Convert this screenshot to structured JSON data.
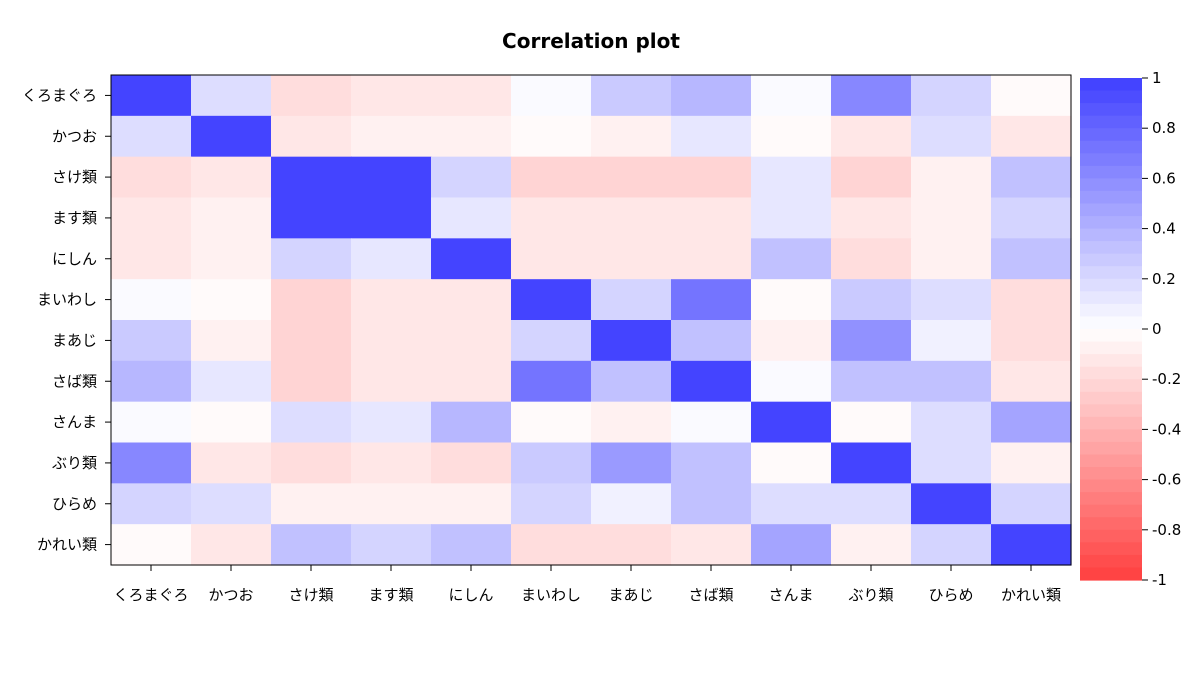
{
  "chart_data": {
    "type": "heatmap",
    "title": "Correlation plot",
    "xlabel": "",
    "ylabel": "",
    "variables": [
      "くろまぐろ",
      "かつお",
      "さけ類",
      "ます類",
      "にしん",
      "まいわし",
      "まあじ",
      "さば類",
      "さんま",
      "ぶり類",
      "ひらめ",
      "かれい類"
    ],
    "matrix": [
      [
        1.0,
        0.15,
        -0.18,
        -0.12,
        -0.12,
        0.0,
        0.25,
        0.35,
        0.0,
        0.6,
        0.2,
        -0.04
      ],
      [
        0.15,
        1.0,
        -0.15,
        -0.08,
        -0.08,
        -0.05,
        -0.08,
        0.1,
        -0.05,
        -0.15,
        0.15,
        -0.15
      ],
      [
        -0.18,
        -0.15,
        1.0,
        0.95,
        0.2,
        -0.22,
        -0.22,
        -0.22,
        0.12,
        -0.22,
        -0.1,
        0.3
      ],
      [
        -0.12,
        -0.08,
        0.95,
        1.0,
        0.1,
        -0.12,
        -0.12,
        -0.12,
        0.1,
        -0.15,
        -0.1,
        0.22
      ],
      [
        -0.12,
        -0.08,
        0.2,
        0.1,
        1.0,
        -0.12,
        -0.12,
        -0.12,
        0.3,
        -0.2,
        -0.1,
        0.3
      ],
      [
        0.0,
        -0.05,
        -0.22,
        -0.15,
        -0.15,
        1.0,
        0.2,
        0.7,
        -0.05,
        0.25,
        0.18,
        -0.18
      ],
      [
        0.25,
        -0.1,
        -0.22,
        -0.15,
        -0.15,
        0.2,
        1.0,
        0.3,
        -0.1,
        0.55,
        0.05,
        -0.18
      ],
      [
        0.35,
        0.12,
        -0.22,
        -0.15,
        -0.15,
        0.7,
        0.3,
        1.0,
        0.0,
        0.3,
        0.3,
        -0.15
      ],
      [
        0.0,
        -0.05,
        0.15,
        0.12,
        0.35,
        -0.05,
        -0.1,
        0.0,
        1.0,
        -0.05,
        0.18,
        0.45
      ],
      [
        0.6,
        -0.15,
        -0.2,
        -0.15,
        -0.18,
        0.25,
        0.5,
        0.3,
        -0.05,
        1.0,
        0.18,
        -0.08
      ],
      [
        0.22,
        0.15,
        -0.08,
        -0.08,
        -0.08,
        0.2,
        0.05,
        0.3,
        0.18,
        0.18,
        1.0,
        0.2
      ],
      [
        -0.04,
        -0.15,
        0.3,
        0.22,
        0.3,
        -0.18,
        -0.18,
        -0.15,
        0.45,
        -0.08,
        0.2,
        1.0
      ]
    ],
    "colorscale": {
      "min": -1,
      "max": 1,
      "low": "#ff3f3f",
      "mid": "#ffffff",
      "high": "#3f3fff",
      "levels": 40
    },
    "colorbar_ticks": [
      1,
      0.8,
      0.6,
      0.4,
      0.2,
      0,
      -0.2,
      -0.4,
      -0.6,
      -0.8,
      -1
    ],
    "legend_position": "right"
  }
}
